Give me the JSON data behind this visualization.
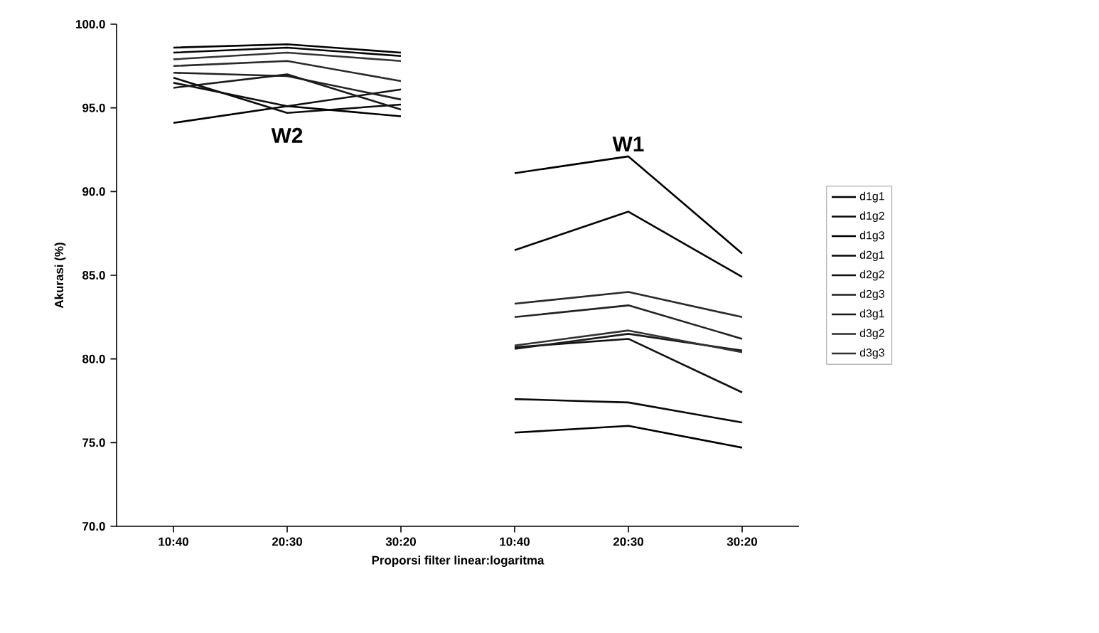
{
  "chart_data": {
    "type": "line",
    "xlabel": "Proporsi filter linear:logaritma",
    "ylabel": "Akurasi (%)",
    "categories": [
      "10:40",
      "20:30",
      "30:20",
      "10:40",
      "20:30",
      "30:20"
    ],
    "ylim": [
      70,
      100
    ],
    "yticks": [
      {
        "value": 70,
        "label": "70.0"
      },
      {
        "value": 75,
        "label": "75.0"
      },
      {
        "value": 80,
        "label": "80.0"
      },
      {
        "value": 85,
        "label": "85.0"
      },
      {
        "value": 90,
        "label": "90.0"
      },
      {
        "value": 95,
        "label": "95.0"
      },
      {
        "value": 100,
        "label": "100.0"
      }
    ],
    "grid": false,
    "legend": "right",
    "marker": "none",
    "line_style": "solid",
    "annotations": [
      "W2",
      "W1"
    ],
    "series": [
      {
        "name": "d1g1",
        "color": "#000000",
        "values": [
          null,
          null,
          null,
          75.6,
          76.0,
          74.7
        ]
      },
      {
        "name": "d1g2",
        "color": "#0a0a0a",
        "values": [
          null,
          null,
          null,
          77.6,
          77.4,
          76.2
        ]
      },
      {
        "name": "d1g3",
        "color": "#000000",
        "values": [
          null,
          null,
          null,
          91.1,
          92.1,
          86.3
        ]
      },
      {
        "name": "d2g1",
        "color": "#050505",
        "values": [
          null,
          null,
          null,
          86.5,
          88.8,
          84.9
        ]
      },
      {
        "name": "d2g2",
        "color": "#101010",
        "values": [
          null,
          null,
          null,
          80.7,
          81.2,
          78.0
        ]
      },
      {
        "name": "d2g3",
        "color": "#222222",
        "values": [
          null,
          null,
          null,
          82.5,
          83.2,
          81.2
        ]
      },
      {
        "name": "d3g1",
        "color": "#1a1a1a",
        "values": [
          null,
          null,
          null,
          80.6,
          81.5,
          80.5
        ]
      },
      {
        "name": "d3g2",
        "color": "#2a2a2a",
        "values": [
          null,
          null,
          null,
          83.3,
          84.0,
          82.5
        ]
      },
      {
        "name": "d3g3",
        "color": "#333333",
        "values": [
          null,
          null,
          null,
          80.8,
          81.7,
          80.4
        ]
      },
      {
        "color": "#000000",
        "values": [
          94.1,
          95.1,
          94.5,
          null,
          null,
          null
        ]
      },
      {
        "color": "#0a0a0a",
        "values": [
          96.8,
          94.7,
          95.2,
          null,
          null,
          null
        ]
      },
      {
        "color": "#000000",
        "values": [
          98.6,
          98.8,
          98.3,
          null,
          null,
          null
        ]
      },
      {
        "color": "#050505",
        "values": [
          98.3,
          98.6,
          98.1,
          null,
          null,
          null
        ]
      },
      {
        "color": "#101010",
        "values": [
          96.5,
          95.1,
          96.1,
          null,
          null,
          null
        ]
      },
      {
        "color": "#222222",
        "values": [
          97.1,
          96.9,
          95.5,
          null,
          null,
          null
        ]
      },
      {
        "color": "#1a1a1a",
        "values": [
          96.2,
          97.0,
          94.9,
          null,
          null,
          null
        ]
      },
      {
        "color": "#2a2a2a",
        "values": [
          97.5,
          97.8,
          96.6,
          null,
          null,
          null
        ]
      },
      {
        "color": "#333333",
        "values": [
          97.9,
          98.3,
          97.8,
          null,
          null,
          null
        ]
      }
    ]
  }
}
